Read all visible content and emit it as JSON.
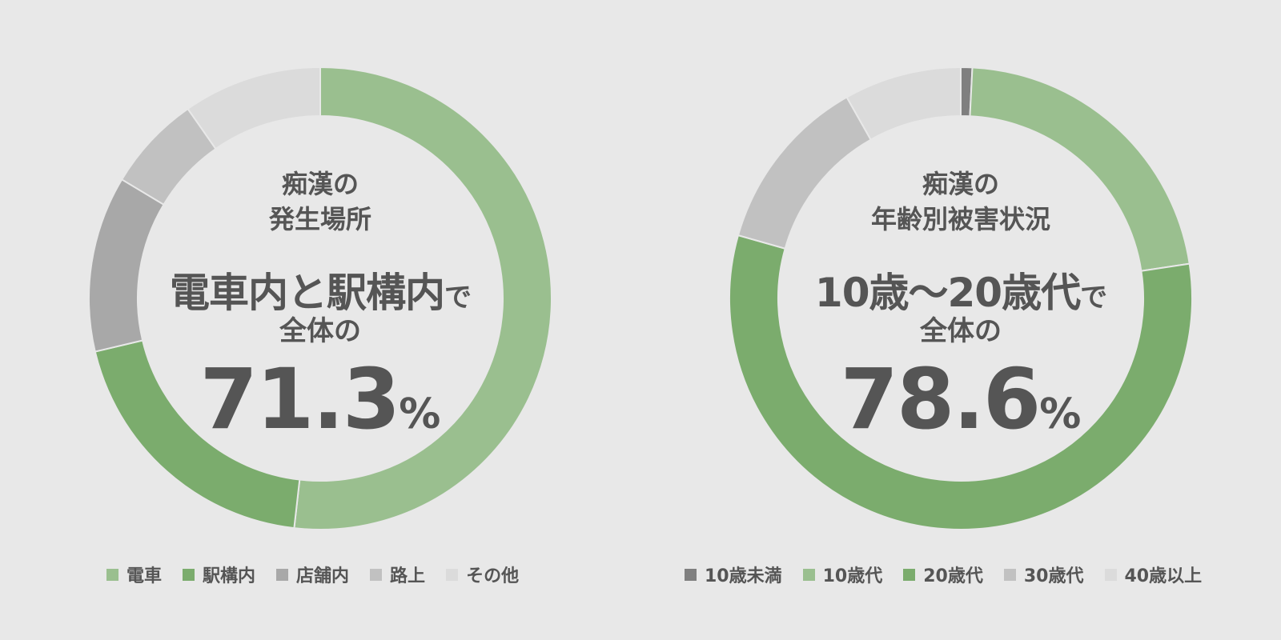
{
  "chart_data": [
    {
      "type": "pie",
      "style": "donut",
      "title_lines": [
        "痴漢の",
        "発生場所"
      ],
      "headline_main": "電車内と駅構内",
      "headline_suffix": "で",
      "subtext": "全体の",
      "percent_value": "71.3",
      "percent_unit": "%",
      "legend_position": "bottom",
      "categories": [
        "電車",
        "駅構内",
        "店舗内",
        "路上",
        "その他"
      ],
      "values": [
        51.8,
        19.5,
        12.3,
        6.7,
        9.7
      ],
      "colors": [
        "#9abf8f",
        "#7bac6d",
        "#a8a8a8",
        "#c1c1c1",
        "#dbdbdb"
      ]
    },
    {
      "type": "pie",
      "style": "donut",
      "title_lines": [
        "痴漢の",
        "年齢別被害状況"
      ],
      "headline_main": "10歳〜20歳代",
      "headline_suffix": "で",
      "subtext": "全体の",
      "percent_value": "78.6",
      "percent_unit": "%",
      "legend_position": "bottom",
      "categories": [
        "10歳未満",
        "10歳代",
        "20歳代",
        "30歳代",
        "40歳以上"
      ],
      "values": [
        0.8,
        21.8,
        56.8,
        12.4,
        8.2
      ],
      "colors": [
        "#7f7f7f",
        "#9abf8f",
        "#7bac6d",
        "#c1c1c1",
        "#dbdbdb"
      ]
    }
  ]
}
